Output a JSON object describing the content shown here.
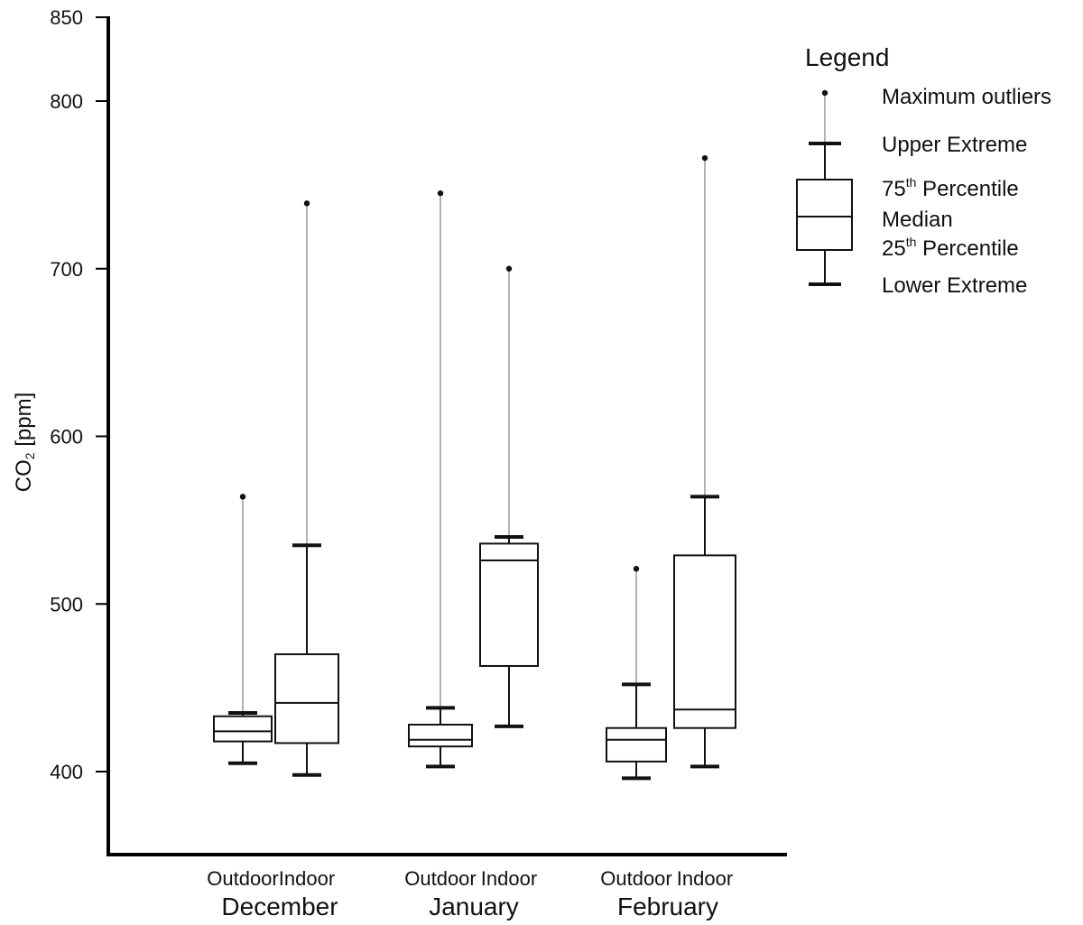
{
  "chart_data": {
    "type": "box",
    "ylabel_main": "CO",
    "ylabel_sub": "2",
    "ylabel_unit": " [ppm]",
    "ylim": [
      350,
      850
    ],
    "yticks": [
      400,
      500,
      600,
      700,
      800,
      850
    ],
    "groups": [
      {
        "month": "December",
        "boxes": [
          {
            "label": "Outdoor",
            "q1": 418,
            "median": 424,
            "q3": 433,
            "lower": 405,
            "upper": 435,
            "outlier": 564
          },
          {
            "label": "Indoor",
            "q1": 417,
            "median": 441,
            "q3": 470,
            "lower": 398,
            "upper": 535,
            "outlier": 739
          }
        ]
      },
      {
        "month": "January",
        "boxes": [
          {
            "label": "Outdoor",
            "q1": 415,
            "median": 419,
            "q3": 428,
            "lower": 403,
            "upper": 438,
            "outlier": 745
          },
          {
            "label": "Indoor",
            "q1": 463,
            "median": 526,
            "q3": 536,
            "lower": 427,
            "upper": 540,
            "outlier": 700
          }
        ]
      },
      {
        "month": "February",
        "boxes": [
          {
            "label": "Outdoor",
            "q1": 406,
            "median": 419,
            "q3": 426,
            "lower": 396,
            "upper": 452,
            "outlier": 521
          },
          {
            "label": "Indoor",
            "q1": 426,
            "median": 437,
            "q3": 529,
            "lower": 403,
            "upper": 564,
            "outlier": 766
          }
        ]
      }
    ],
    "legend": {
      "title": "Legend",
      "placement": "top-right",
      "items": {
        "max_outliers": "Maximum outliers",
        "upper_extreme": "Upper Extreme",
        "p75_num": "75",
        "p75_sup": "th",
        "p75_rest": " Percentile",
        "median": "Median",
        "p25_num": "25",
        "p25_sup": "th",
        "p25_rest": " Percentile",
        "lower_extreme": "Lower Extreme"
      }
    },
    "colors": {
      "box": "#111111",
      "outlier_whisker": "#9a9a9a",
      "axis": "#000000"
    }
  }
}
